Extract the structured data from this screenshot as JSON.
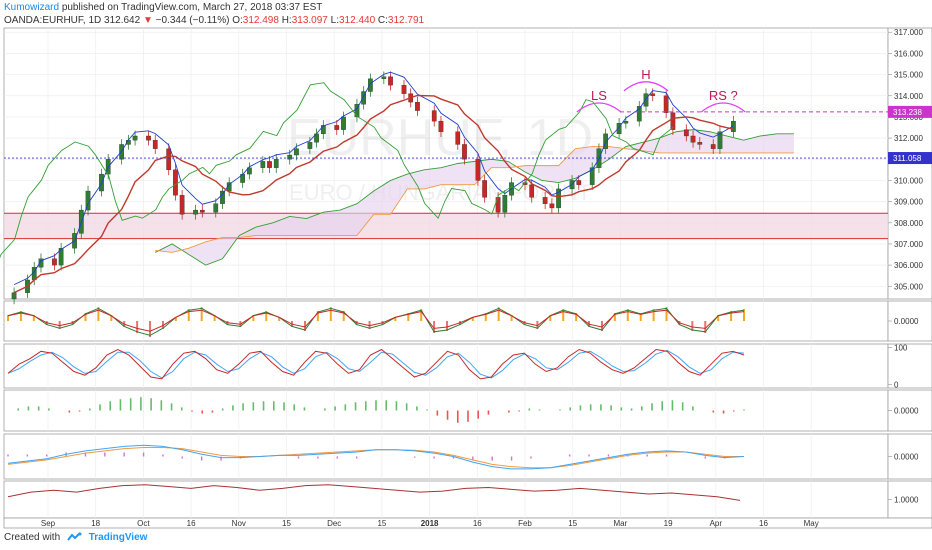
{
  "header": {
    "author": "Kumowizard",
    "published_text": "published on TradingView.com, March 27, 2018 03:37 EST",
    "symbol": "OANDA:EURHUF, 1D",
    "last": "312.642",
    "change": "−0.344 (−0.11%)",
    "o_label": "O:",
    "o": "312.498",
    "h_label": "H:",
    "h": "313.097",
    "l_label": "L:",
    "l": "312.440",
    "c_label": "C:",
    "c": "312.791"
  },
  "footer": {
    "created_with": "Created with",
    "brand": "TradingView"
  },
  "watermark": {
    "symbol": "EURHUF, 1D",
    "name": "EURO / HUNGARIAN FORINT"
  },
  "annotations": [
    {
      "text": "LS",
      "x": "2018-02-14",
      "y": 313.8
    },
    {
      "text": "H",
      "x": "2018-02-28",
      "y": 314.8
    },
    {
      "text": "RS ?",
      "x": "2018-03-23",
      "y": 313.8
    }
  ],
  "price_tags": [
    {
      "value": "313.238",
      "color": "#cc33cc"
    },
    {
      "value": "311.058",
      "color": "#3333cc"
    }
  ],
  "colors": {
    "up": "#26a69a",
    "candle_up": "#2e7d32",
    "candle_down": "#c62828",
    "tenkan": "#1e3fcc",
    "kijun": "#c0392b",
    "chikou": "#33a033",
    "senkou_a": "#33a033",
    "senkou_b": "#f09a3e",
    "cloud": "#e6d3ee",
    "zone_fill": "#f3d9e3",
    "zone_line": "#d32f2f",
    "annotation": "#c2185b",
    "arc": "#e040fb"
  },
  "chart_data": [
    {
      "type": "candlestick",
      "title": "OANDA:EURHUF, 1D",
      "ylim": [
        304.4,
        317.2
      ],
      "y_ticks": [
        "317.000",
        "316.000",
        "315.000",
        "314.000",
        "313.000",
        "312.000",
        "311.000",
        "310.000",
        "309.000",
        "308.000",
        "307.000",
        "306.000",
        "305.000"
      ],
      "x_ticks": [
        "Sep",
        "18",
        "Oct",
        "16",
        "Nov",
        "15",
        "Dec",
        "15",
        "2018",
        "16",
        "Feb",
        "15",
        "Mar",
        "19",
        "Apr",
        "16",
        "May"
      ],
      "x_range": [
        "2017-08-21",
        "2018-05-11"
      ],
      "candle_dates": [
        "2017-08-24",
        "2017-08-28",
        "2017-08-30",
        "2017-09-01",
        "2017-09-05",
        "2017-09-07",
        "2017-09-11",
        "2017-09-13",
        "2017-09-15",
        "2017-09-19",
        "2017-09-21",
        "2017-09-25",
        "2017-09-27",
        "2017-09-29",
        "2017-10-03",
        "2017-10-05",
        "2017-10-09",
        "2017-10-11",
        "2017-10-13",
        "2017-10-17",
        "2017-10-19",
        "2017-10-23",
        "2017-10-25",
        "2017-10-27",
        "2017-10-31",
        "2017-11-02",
        "2017-11-06",
        "2017-11-08",
        "2017-11-10",
        "2017-11-14",
        "2017-11-16",
        "2017-11-20",
        "2017-11-22",
        "2017-11-24",
        "2017-11-28",
        "2017-11-30",
        "2017-12-04",
        "2017-12-06",
        "2017-12-08",
        "2017-12-12",
        "2017-12-14",
        "2017-12-18",
        "2017-12-20",
        "2017-12-22",
        "2017-12-27",
        "2017-12-29",
        "2018-01-03",
        "2018-01-05",
        "2018-01-09",
        "2018-01-11",
        "2018-01-15",
        "2018-01-17",
        "2018-01-19",
        "2018-01-23",
        "2018-01-25",
        "2018-01-29",
        "2018-01-31",
        "2018-02-02",
        "2018-02-06",
        "2018-02-08",
        "2018-02-12",
        "2018-02-14",
        "2018-02-16",
        "2018-02-20",
        "2018-02-22",
        "2018-02-26",
        "2018-02-28",
        "2018-03-02",
        "2018-03-06",
        "2018-03-08",
        "2018-03-12",
        "2018-03-14",
        "2018-03-16",
        "2018-03-20",
        "2018-03-22",
        "2018-03-26"
      ],
      "close": [
        304.7,
        305.3,
        305.9,
        306.3,
        306.0,
        306.8,
        307.5,
        308.6,
        309.5,
        310.3,
        311.0,
        311.7,
        311.9,
        312.1,
        311.9,
        311.5,
        310.5,
        309.3,
        308.4,
        308.6,
        308.5,
        308.9,
        309.5,
        309.9,
        310.3,
        310.6,
        310.9,
        310.6,
        311.0,
        311.2,
        311.5,
        311.8,
        312.2,
        312.6,
        312.4,
        313.0,
        313.6,
        314.2,
        314.8,
        314.9,
        314.5,
        314.1,
        313.7,
        313.3,
        312.8,
        312.3,
        311.7,
        311.0,
        310.0,
        309.2,
        308.5,
        309.3,
        309.9,
        309.8,
        309.2,
        308.9,
        308.7,
        309.6,
        310.0,
        309.8,
        310.6,
        311.5,
        312.2,
        312.7,
        312.8,
        313.5,
        314.1,
        314.0,
        313.2,
        312.4,
        312.1,
        311.8,
        311.7,
        311.5,
        312.3,
        312.8
      ],
      "senkou_a": [
        306.6,
        307.0,
        306.5,
        306.0,
        306.3,
        307.4,
        307.8,
        308.0,
        308.3,
        308.2,
        308.5,
        308.6,
        308.9,
        309.5,
        310.0,
        310.3,
        310.5,
        310.6,
        310.8,
        310.9,
        311.0,
        310.9,
        310.4,
        310.0,
        309.9,
        310.1,
        310.5,
        311.0,
        311.6,
        311.8,
        312.0,
        312.3,
        312.4,
        312.3,
        312.1,
        311.9,
        312.1,
        312.2,
        312.2
      ],
      "senkou_b": [
        306.7,
        306.6,
        306.8,
        307.1,
        307.3,
        307.3,
        307.4,
        307.4,
        307.4,
        307.4,
        307.4,
        307.4,
        307.4,
        308.4,
        308.4,
        309.6,
        309.6,
        309.8,
        309.8,
        309.8,
        310.6,
        310.6,
        310.7,
        310.7,
        310.7,
        311.5,
        311.6,
        311.6,
        311.5,
        311.4,
        311.3,
        311.3,
        311.3,
        311.3,
        311.3,
        311.3,
        311.3,
        311.3,
        311.3
      ],
      "cloud_dates_start": "2017-10-05",
      "cloud_step_days": 5,
      "horizontal_lines": [
        313.238,
        311.058
      ],
      "zone": [
        307.25,
        308.45
      ]
    },
    {
      "type": "histogram+line",
      "ylim": [
        -1,
        1
      ],
      "y_ticks": [
        "0.0000"
      ],
      "values": [
        0.3,
        0.5,
        0.3,
        -0.2,
        -0.4,
        -0.2,
        0.4,
        0.7,
        0.3,
        -0.3,
        -0.6,
        -0.8,
        -0.4,
        0.2,
        0.6,
        0.7,
        0.3,
        -0.2,
        -0.3,
        0.3,
        0.5,
        0.2,
        -0.3,
        -0.5,
        0.5,
        0.7,
        0.5,
        -0.2,
        -0.4,
        -0.2,
        0.2,
        0.4,
        0.6,
        -0.6,
        -0.5,
        -0.2,
        0.2,
        0.4,
        0.7,
        0.3,
        -0.2,
        -0.4,
        0.3,
        0.6,
        0.4,
        -0.3,
        -0.5,
        0.4,
        0.6,
        0.4,
        0.6,
        0.7,
        -0.2,
        -0.5,
        -0.6,
        0.3,
        0.5,
        0.6
      ]
    },
    {
      "type": "line",
      "ylim": [
        -10,
        110
      ],
      "y_ticks": [
        "100",
        "0"
      ],
      "series": [
        {
          "name": "",
          "values": [
            30,
            55,
            70,
            90,
            85,
            60,
            35,
            25,
            45,
            80,
            95,
            80,
            50,
            20,
            15,
            55,
            85,
            90,
            70,
            40,
            30,
            55,
            85,
            90,
            60,
            35,
            25,
            60,
            90,
            85,
            55,
            30,
            40,
            80,
            95,
            70,
            45,
            20,
            30,
            60,
            90,
            80,
            40,
            15,
            20,
            55,
            80,
            85,
            55,
            35,
            45,
            75,
            95,
            85,
            60,
            40,
            30,
            45,
            70,
            95,
            90,
            60,
            35,
            25,
            55,
            85,
            90,
            80
          ]
        }
      ]
    },
    {
      "type": "histogram",
      "ylim": [
        -1,
        1
      ],
      "y_ticks": [
        "0.0000"
      ],
      "values": [
        0.0,
        0.1,
        0.2,
        0.2,
        0.1,
        0.0,
        -0.1,
        -0.05,
        0.1,
        0.3,
        0.45,
        0.55,
        0.6,
        0.65,
        0.6,
        0.5,
        0.35,
        0.15,
        -0.05,
        -0.15,
        -0.1,
        0.1,
        0.25,
        0.35,
        0.4,
        0.45,
        0.45,
        0.4,
        0.3,
        0.15,
        0.0,
        0.1,
        0.2,
        0.3,
        0.4,
        0.45,
        0.5,
        0.5,
        0.45,
        0.35,
        0.2,
        0.05,
        -0.25,
        -0.45,
        -0.6,
        -0.55,
        -0.4,
        -0.2,
        0.0,
        -0.1,
        -0.05,
        0.1,
        0.05,
        0.0,
        0.05,
        0.15,
        0.25,
        0.3,
        0.3,
        0.25,
        0.15,
        0.1,
        0.2,
        0.35,
        0.45,
        0.5,
        0.4,
        0.2,
        0.0,
        -0.1,
        -0.15,
        -0.05,
        0.05
      ]
    },
    {
      "type": "line",
      "ylim": [
        -1,
        1
      ],
      "y_ticks": [
        "0.0000"
      ],
      "series": [
        {
          "name": "",
          "values": [
            -0.3,
            -0.2,
            -0.1,
            0.1,
            0.25,
            0.35,
            0.45,
            0.5,
            0.45,
            0.3,
            0.1,
            -0.05,
            -0.05,
            0.0,
            0.05,
            0.05,
            0.1,
            0.15,
            0.2,
            0.3,
            0.3,
            0.25,
            0.15,
            0.0,
            -0.25,
            -0.45,
            -0.55,
            -0.55,
            -0.5,
            -0.35,
            -0.2,
            -0.05,
            0.1,
            0.2,
            0.25,
            0.2,
            0.05,
            -0.05,
            0.0
          ]
        },
        {
          "name": "",
          "values": [
            -0.35,
            -0.25,
            -0.15,
            0.0,
            0.15,
            0.25,
            0.35,
            0.4,
            0.4,
            0.35,
            0.2,
            0.05,
            0.0,
            0.0,
            0.05,
            0.1,
            0.15,
            0.2,
            0.25,
            0.3,
            0.3,
            0.28,
            0.2,
            0.05,
            -0.15,
            -0.35,
            -0.45,
            -0.5,
            -0.5,
            -0.4,
            -0.25,
            -0.1,
            0.05,
            0.15,
            0.2,
            0.2,
            0.1,
            0.0,
            0.0
          ]
        }
      ]
    },
    {
      "type": "line",
      "ylim": [
        0.98,
        1.02
      ],
      "y_ticks": [
        "1.0000"
      ],
      "series": [
        {
          "name": "",
          "values": [
            1.003,
            1.008,
            1.01,
            1.008,
            1.012,
            1.015,
            1.016,
            1.014,
            1.012,
            1.015,
            1.013,
            1.01,
            1.012,
            1.015,
            1.016,
            1.014,
            1.012,
            1.01,
            1.008,
            1.009,
            1.012,
            1.013,
            1.011,
            1.009,
            1.01,
            1.012,
            1.01,
            1.008,
            1.006,
            1.007,
            1.005,
            1.003,
            0.999
          ]
        }
      ]
    }
  ]
}
